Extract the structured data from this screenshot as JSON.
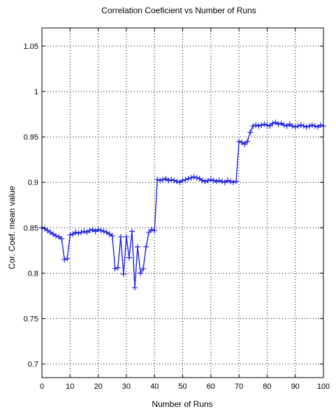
{
  "chart_data": {
    "type": "line",
    "title": "Correlation Coeficient vs Number of Runs",
    "xlabel": "Number of Runs",
    "ylabel": "Cor. Coef. mean value",
    "xlim": [
      0,
      100
    ],
    "ylim": [
      0.685,
      1.07
    ],
    "grid": true,
    "grid_style": "dotted",
    "x_ticks": [
      0,
      10,
      20,
      30,
      40,
      50,
      60,
      70,
      80,
      90,
      100
    ],
    "x_tick_labels": [
      "0",
      "10",
      "20",
      "30",
      "40",
      "50",
      "60",
      "70",
      "80",
      "90",
      "100"
    ],
    "y_ticks": [
      0.7,
      0.75,
      0.8,
      0.85,
      0.9,
      0.95,
      1.0,
      1.05
    ],
    "y_tick_labels": [
      "0.7",
      "0.75",
      "0.8",
      "0.85",
      "0.9",
      "0.95",
      "1",
      "1.05"
    ],
    "line_color": "#1f22e6",
    "marker": "plus",
    "series": [
      {
        "x": [
          0,
          1,
          2,
          3,
          4,
          5,
          6,
          7,
          8,
          9,
          10,
          11,
          12,
          13,
          14,
          15,
          16,
          17,
          18,
          19,
          20,
          21,
          22,
          23,
          24,
          25,
          26,
          27,
          28,
          29,
          30,
          31,
          32,
          33,
          34,
          35,
          36,
          37,
          38,
          39,
          40,
          41,
          42,
          43,
          44,
          45,
          46,
          47,
          48,
          49,
          50,
          51,
          52,
          53,
          54,
          55,
          56,
          57,
          58,
          59,
          60,
          61,
          62,
          63,
          64,
          65,
          66,
          67,
          68,
          69,
          70,
          71,
          72,
          73,
          74,
          75,
          76,
          77,
          78,
          79,
          80,
          81,
          82,
          83,
          84,
          85,
          86,
          87,
          88,
          89,
          90,
          91,
          92,
          93,
          94,
          95,
          96,
          97,
          98,
          99,
          100
        ],
        "values": [
          0.85,
          0.849,
          0.847,
          0.845,
          0.843,
          0.841,
          0.84,
          0.838,
          0.815,
          0.816,
          0.842,
          0.843,
          0.845,
          0.844,
          0.845,
          0.846,
          0.845,
          0.847,
          0.848,
          0.846,
          0.848,
          0.847,
          0.846,
          0.845,
          0.843,
          0.841,
          0.805,
          0.806,
          0.84,
          0.799,
          0.84,
          0.817,
          0.846,
          0.784,
          0.829,
          0.8,
          0.805,
          0.829,
          0.845,
          0.848,
          0.847,
          0.903,
          0.902,
          0.903,
          0.904,
          0.902,
          0.903,
          0.902,
          0.901,
          0.9,
          0.902,
          0.903,
          0.904,
          0.905,
          0.906,
          0.905,
          0.904,
          0.902,
          0.901,
          0.902,
          0.903,
          0.902,
          0.901,
          0.902,
          0.901,
          0.9,
          0.902,
          0.901,
          0.9,
          0.901,
          0.945,
          0.944,
          0.942,
          0.945,
          0.955,
          0.962,
          0.963,
          0.962,
          0.963,
          0.964,
          0.963,
          0.962,
          0.965,
          0.966,
          0.964,
          0.965,
          0.963,
          0.962,
          0.964,
          0.962,
          0.961,
          0.962,
          0.963,
          0.962,
          0.961,
          0.962,
          0.963,
          0.962,
          0.961,
          0.963,
          0.962
        ]
      }
    ]
  }
}
